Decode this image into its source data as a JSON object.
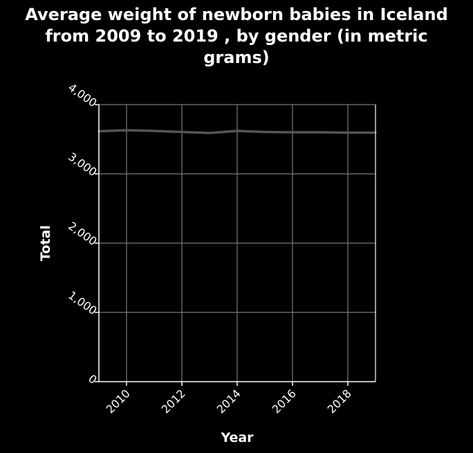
{
  "chart_data": {
    "type": "line",
    "title_lines": [
      "Average weight of newborn babies in Iceland",
      "from 2009 to 2019 , by gender (in metric",
      "grams)"
    ],
    "xlabel": "Year",
    "ylabel": "Total",
    "xlim": [
      2009,
      2019
    ],
    "ylim": [
      0,
      4000
    ],
    "x_ticks": [
      2010,
      2012,
      2014,
      2016,
      2018
    ],
    "x_tick_labels": [
      "2010",
      "2012",
      "2014",
      "2016",
      "2018"
    ],
    "y_ticks": [
      0,
      1000,
      2000,
      3000,
      4000
    ],
    "y_tick_labels": [
      "0",
      "1,000",
      "2,000",
      "3,000",
      "4,000"
    ],
    "grid": true,
    "series": [
      {
        "color": "#555555",
        "x": [
          2009,
          2010,
          2011,
          2012,
          2013,
          2014,
          2015,
          2016,
          2017,
          2018,
          2019
        ],
        "values": [
          3615,
          3630,
          3620,
          3605,
          3590,
          3620,
          3605,
          3600,
          3600,
          3595,
          3595
        ]
      }
    ],
    "colors": {
      "background": "#000000",
      "text": "#ffffff",
      "axis": "#ffffff",
      "grid": "#7a7a7a"
    }
  }
}
